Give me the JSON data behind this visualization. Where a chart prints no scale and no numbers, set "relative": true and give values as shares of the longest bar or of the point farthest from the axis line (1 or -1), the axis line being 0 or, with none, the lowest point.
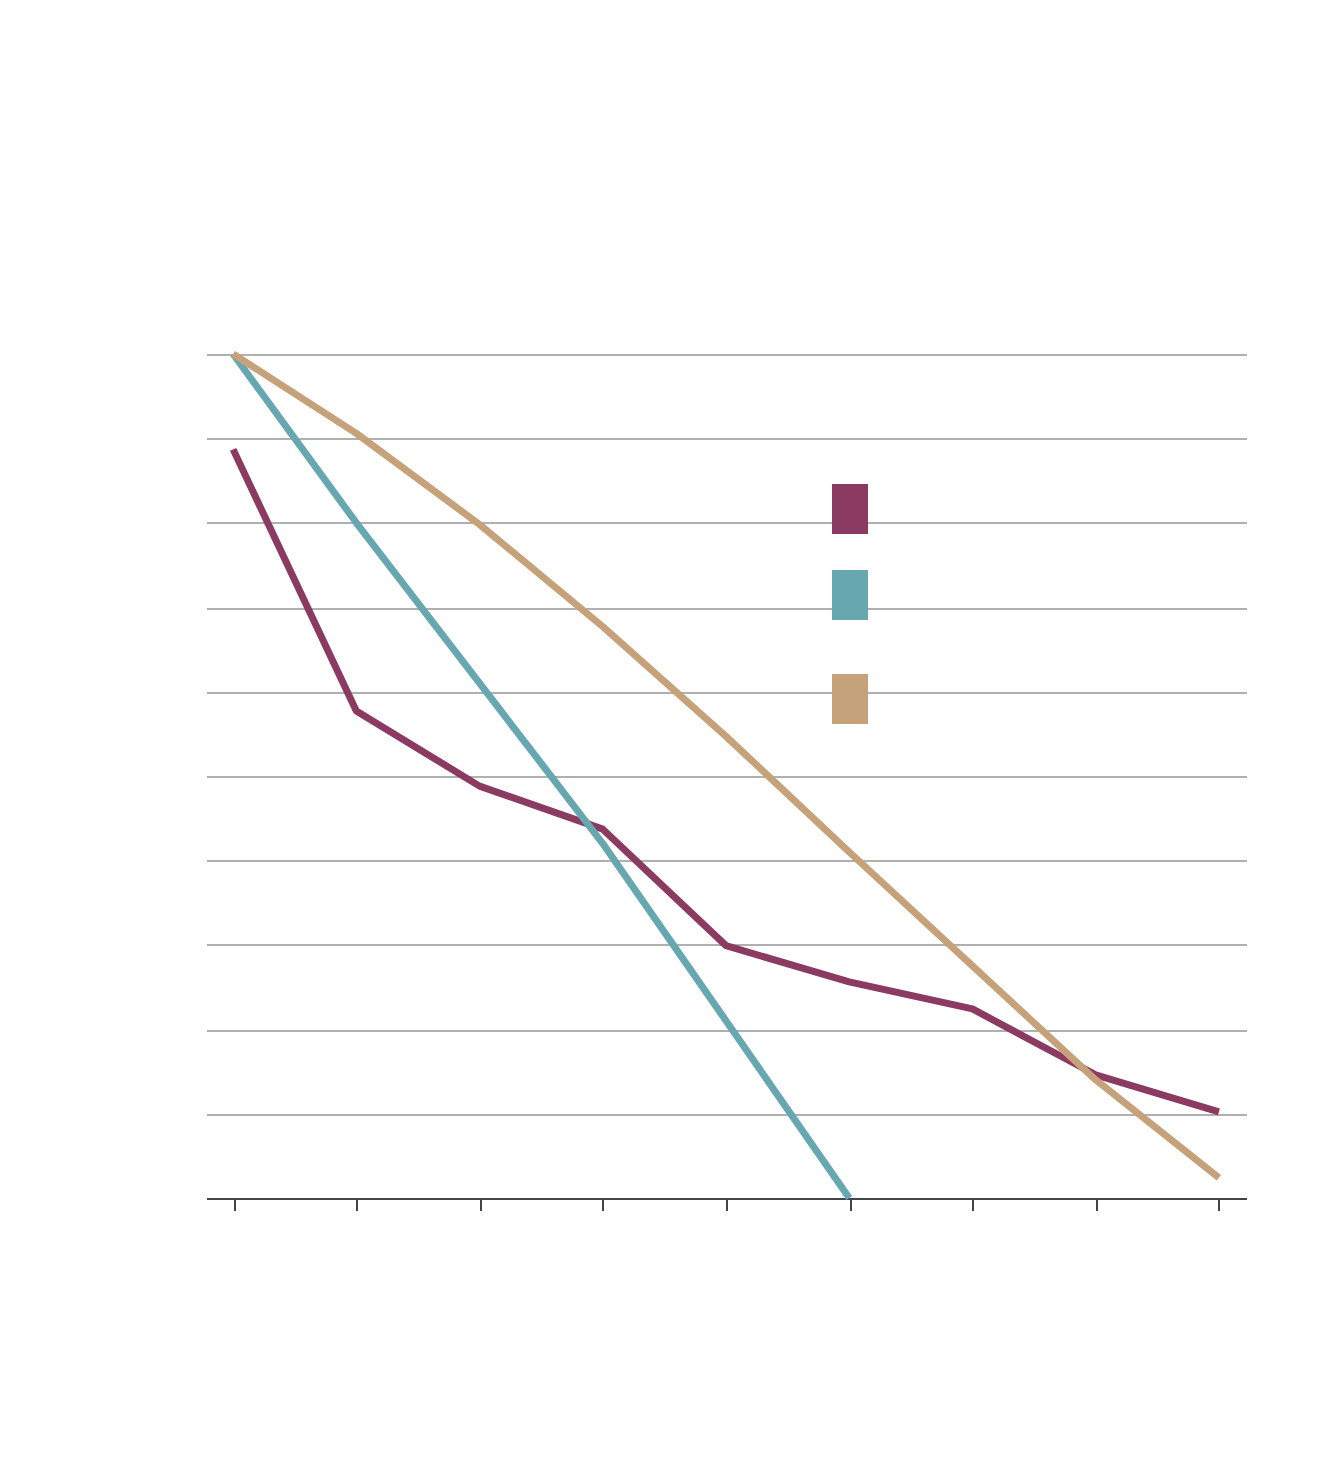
{
  "chart_data": {
    "type": "line",
    "relative": true,
    "categories": [
      null,
      null,
      null,
      null,
      null,
      null,
      null,
      null,
      null
    ],
    "series": [
      {
        "color": "#8b3a62",
        "values": [
          0.887,
          0.577,
          0.488,
          0.437,
          0.299,
          0.256,
          0.224,
          0.146,
          0.102
        ]
      },
      {
        "color": "#67a8b0",
        "values": [
          1.0,
          0.8,
          0.61,
          0.42,
          0.21,
          0.0,
          null,
          null,
          null
        ]
      },
      {
        "color": "#c6a27a",
        "values": [
          1.0,
          0.906,
          0.798,
          0.677,
          0.547,
          0.41,
          0.275,
          0.14,
          0.024
        ]
      }
    ],
    "grid": "y",
    "marker": "none",
    "line_style": "solid"
  }
}
